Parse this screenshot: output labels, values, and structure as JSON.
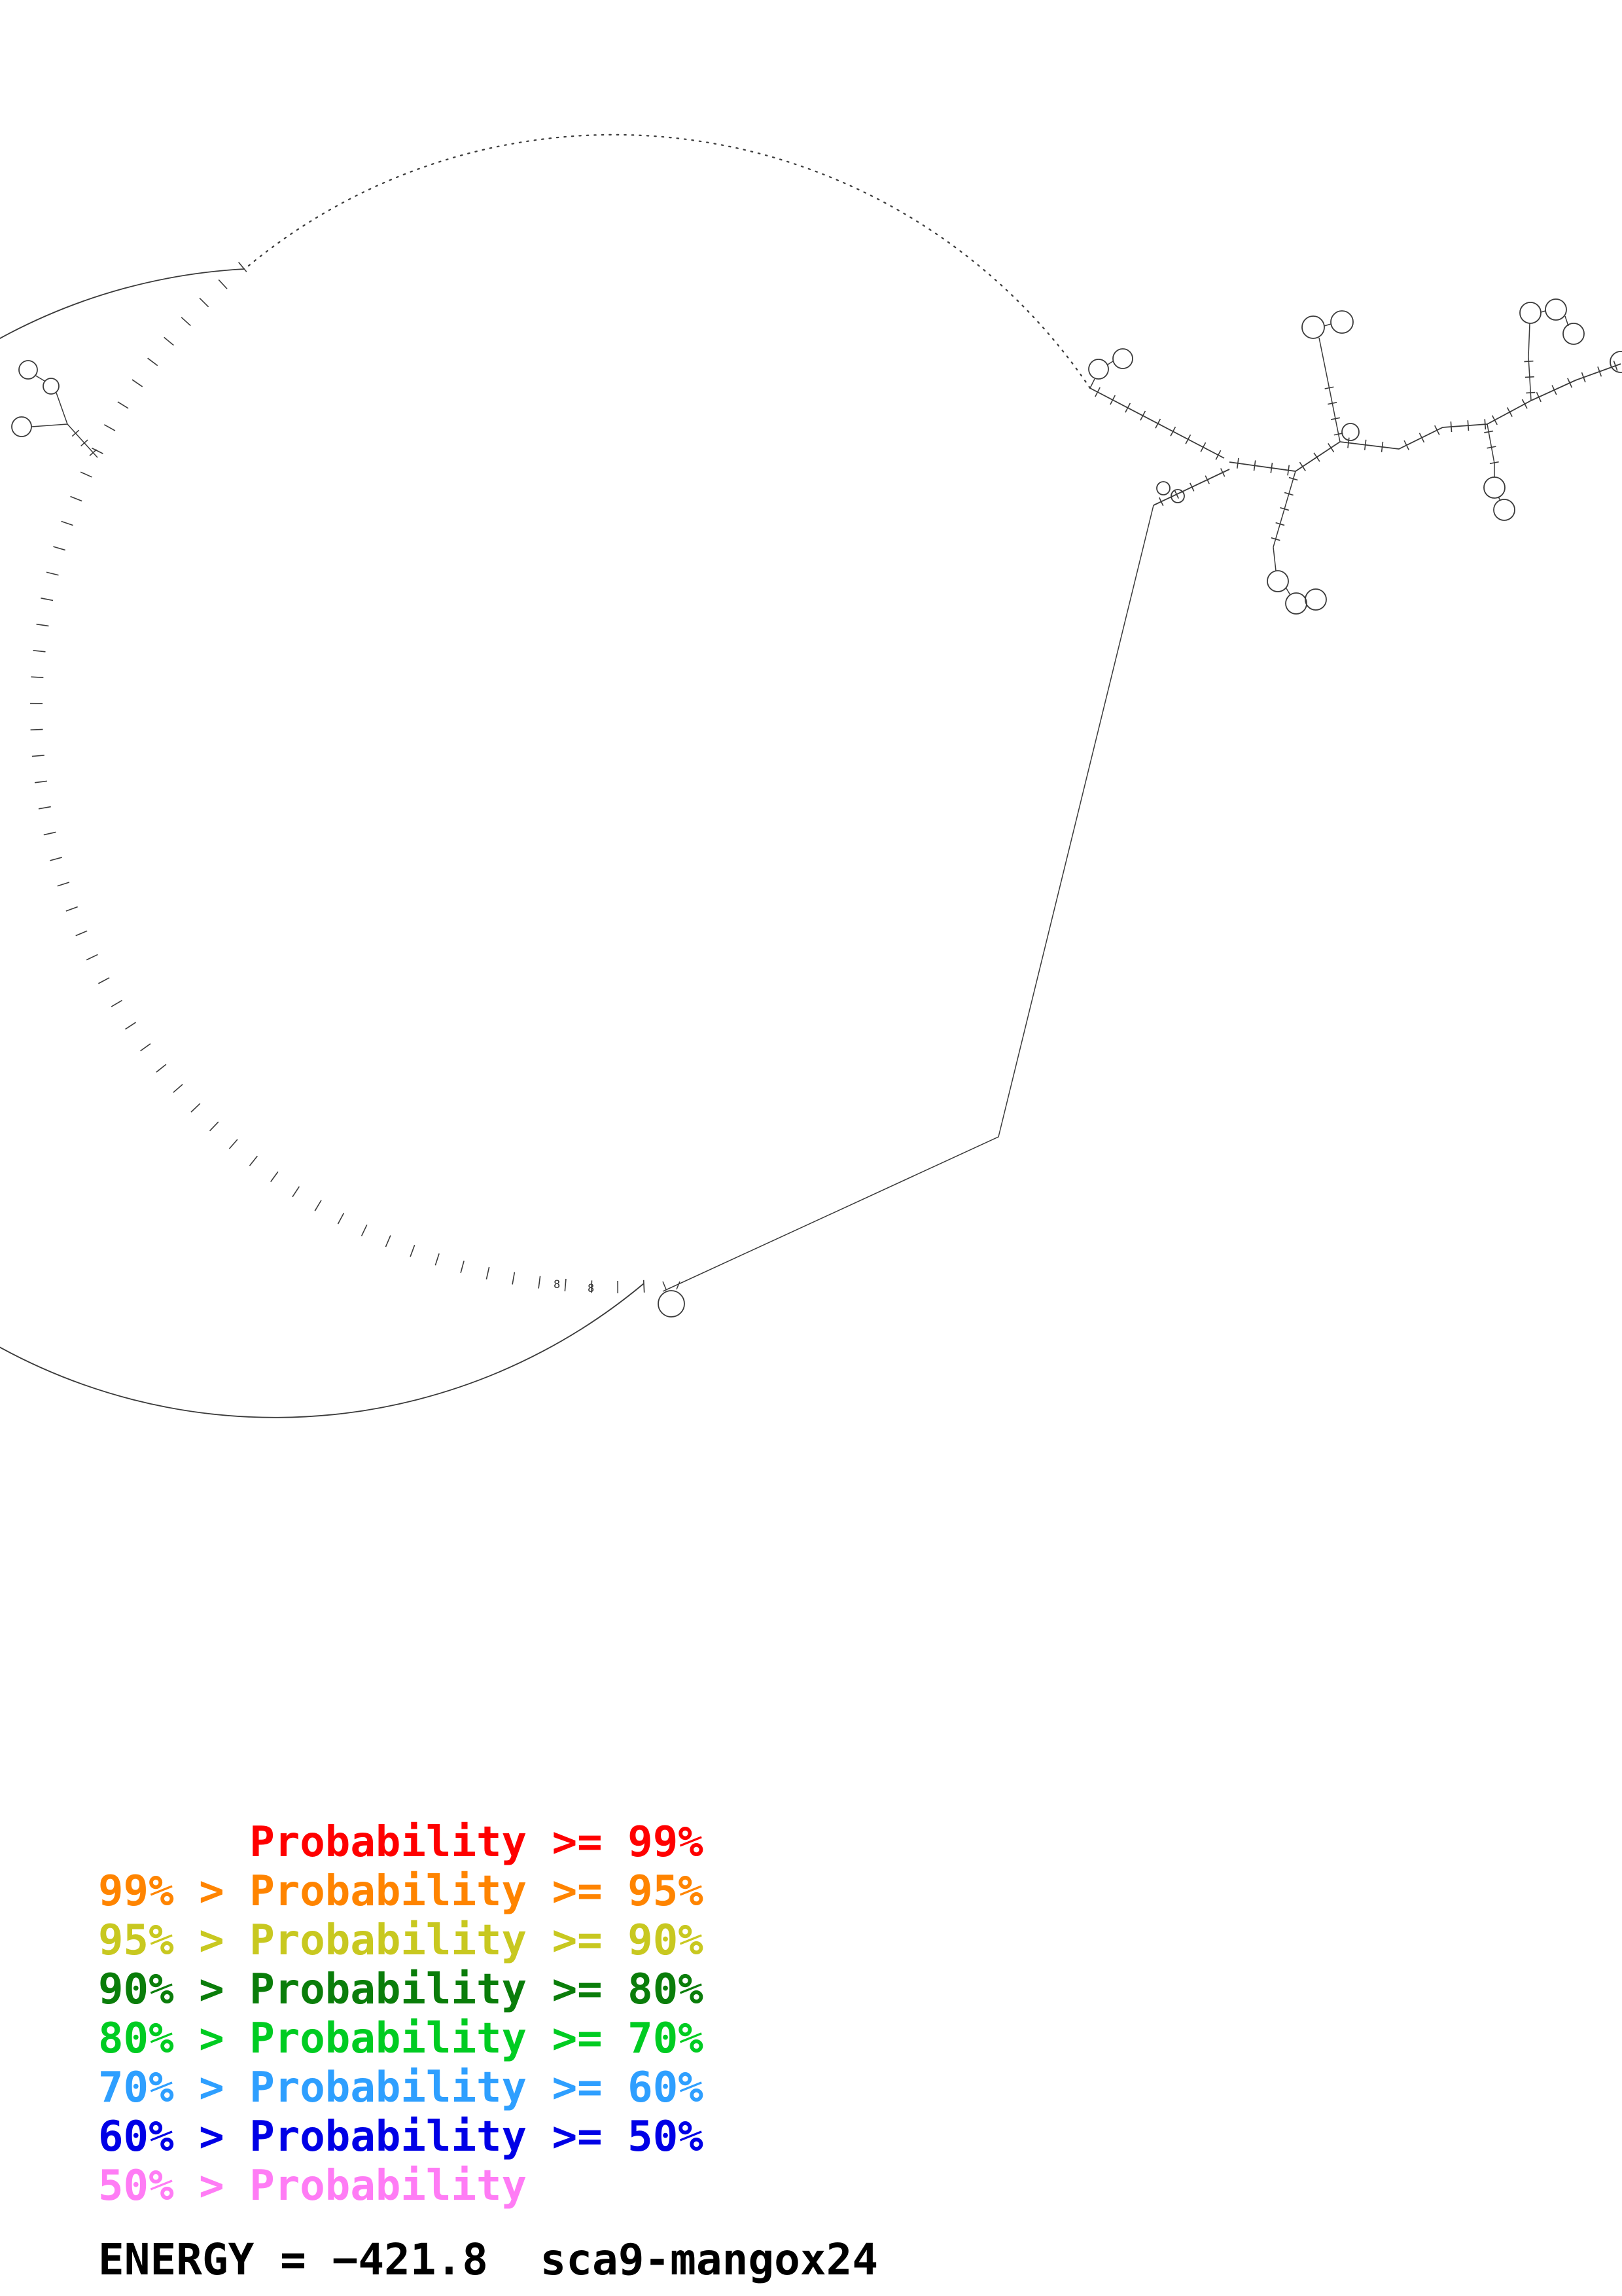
{
  "diagram": {
    "tick_labels": [
      "8",
      "8"
    ]
  },
  "legend": {
    "items": [
      {
        "text": "      Probability >= 99%",
        "color": "#ff0000"
      },
      {
        "text": "99% > Probability >= 95%",
        "color": "#ff8400"
      },
      {
        "text": "95% > Probability >= 90%",
        "color": "#c8c820"
      },
      {
        "text": "90% > Probability >= 80%",
        "color": "#0a7d0a"
      },
      {
        "text": "80% > Probability >= 70%",
        "color": "#00cc22"
      },
      {
        "text": "70% > Probability >= 60%",
        "color": "#2e9fff"
      },
      {
        "text": "60% > Probability >= 50%",
        "color": "#0000e6"
      },
      {
        "text": "50% > Probability",
        "color": "#ff7cf5"
      }
    ]
  },
  "footer": {
    "energy_label": "ENERGY = −421.8  sca9-mangox24"
  }
}
